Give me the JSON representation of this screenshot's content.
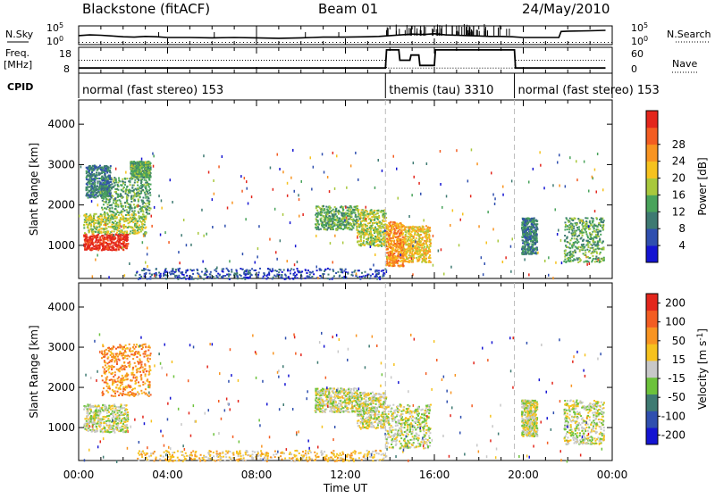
{
  "header": {
    "title": "Blackstone (fitACF)",
    "beam": "Beam 01",
    "date": "24/May/2010"
  },
  "chart_data": [
    {
      "id": "noise-panel",
      "type": "line",
      "left_label": "N.Sky",
      "right_label": "N.Search",
      "left_ticks": [
        "10^5",
        "10^0"
      ],
      "right_ticks": [
        "10^5",
        "10^0"
      ],
      "ylim": [
        0,
        5
      ],
      "series": [
        {
          "name": "N.Sky",
          "x": [
            0,
            0.5,
            1,
            1.5,
            2,
            2.5,
            3,
            3.5,
            4,
            5,
            6,
            7,
            8,
            9,
            10,
            10.5,
            11,
            12,
            13,
            13.5,
            14,
            14.5,
            15,
            15.5,
            16,
            16.5,
            17,
            17.5,
            18,
            18.5,
            19,
            19.5,
            20,
            20.5,
            21.6,
            21.7,
            22,
            23,
            23.7
          ],
          "y": [
            2.4,
            2.6,
            2.5,
            2.3,
            2.1,
            2.0,
            2.2,
            2.1,
            1.9,
            1.9,
            1.8,
            1.9,
            1.8,
            1.7,
            1.8,
            1.9,
            2.0,
            2.0,
            2.1,
            2.2,
            2.4,
            2.6,
            2.8,
            2.7,
            2.9,
            2.6,
            2.5,
            2.4,
            2.3,
            2.2,
            2.2,
            2.1,
            1.9,
            1.9,
            1.9,
            3.5,
            3.6,
            3.7,
            3.8
          ]
        }
      ]
    },
    {
      "id": "frequency-panel",
      "type": "line",
      "left_label": "Freq. [MHz]",
      "right_label": "Nave",
      "left_ticks": [
        "18",
        "8"
      ],
      "right_ticks": [
        "60",
        "0"
      ],
      "ylim": [
        8,
        18
      ],
      "series": [
        {
          "name": "Freq.",
          "x": [
            0,
            13.8,
            13.85,
            14.4,
            14.45,
            14.9,
            14.95,
            15.3,
            15.35,
            16.0,
            16.05,
            19.6,
            19.65,
            20.4,
            22.0,
            22.05,
            23.7
          ],
          "y": [
            10,
            10,
            17,
            17,
            13,
            13,
            15,
            15,
            11,
            11,
            17,
            17,
            10,
            10,
            10,
            10,
            10
          ]
        },
        {
          "name": "Nave",
          "x": [
            0,
            13.8,
            13.85,
            19.6,
            19.65,
            20.4,
            22.0,
            23.7
          ],
          "y": [
            13,
            13,
            10,
            10,
            13,
            13,
            13,
            13
          ]
        }
      ]
    },
    {
      "id": "cpid-strip",
      "type": "table",
      "label": "CPID",
      "segments": [
        {
          "text": "normal (fast stereo) 153",
          "start": 0,
          "end": 13.8
        },
        {
          "text": "themis (tau) 3310",
          "start": 13.8,
          "end": 19.6
        },
        {
          "text": "normal (fast stereo) 153",
          "start": 19.6,
          "end": 24
        }
      ]
    },
    {
      "id": "power-panel",
      "type": "heatmap",
      "ylabel": "Slant Range [km]",
      "xlim": [
        0,
        24
      ],
      "ylim": [
        180,
        4600
      ],
      "y_ticks": [
        1000,
        2000,
        3000,
        4000
      ],
      "colorbar": {
        "label": "Power [dB]",
        "range": [
          0,
          32
        ],
        "ticks": [
          "4",
          "8",
          "12",
          "16",
          "20",
          "24",
          "28"
        ],
        "colors": [
          "#1414d2",
          "#2f4faf",
          "#3e7a72",
          "#49a35b",
          "#a8c83c",
          "#f6c21e",
          "#f89421",
          "#f35d22",
          "#e3261c"
        ]
      },
      "echo_regions": [
        {
          "t0": 0.2,
          "t1": 2.2,
          "r0": 900,
          "r1": 1300,
          "level": 8
        },
        {
          "t0": 0.2,
          "t1": 3.0,
          "r0": 1300,
          "r1": 1800,
          "level": 4
        },
        {
          "t0": 1.0,
          "t1": 3.2,
          "r0": 1800,
          "r1": 2700,
          "level": 3
        },
        {
          "t0": 2.3,
          "t1": 3.2,
          "r0": 2700,
          "r1": 3100,
          "level": 3
        },
        {
          "t0": 0.3,
          "t1": 1.4,
          "r0": 2200,
          "r1": 3000,
          "level": 2
        },
        {
          "t0": 10.6,
          "t1": 12.5,
          "r0": 1400,
          "r1": 2000,
          "level": 3
        },
        {
          "t0": 12.5,
          "t1": 13.8,
          "r0": 1000,
          "r1": 1900,
          "level": 4
        },
        {
          "t0": 13.8,
          "t1": 14.6,
          "r0": 500,
          "r1": 1600,
          "level": 6
        },
        {
          "t0": 14.6,
          "t1": 15.8,
          "r0": 600,
          "r1": 1500,
          "level": 5
        },
        {
          "t0": 19.9,
          "t1": 20.6,
          "r0": 800,
          "r1": 1700,
          "level": 2
        },
        {
          "t0": 21.8,
          "t1": 23.6,
          "r0": 600,
          "r1": 1700,
          "level": 3
        },
        {
          "t0": 2.5,
          "t1": 13.8,
          "r0": 180,
          "r1": 450,
          "level": 1
        }
      ]
    },
    {
      "id": "velocity-panel",
      "type": "heatmap",
      "xlabel": "Time UT",
      "ylabel": "Slant Range [km]",
      "xlim": [
        0,
        24
      ],
      "ylim": [
        180,
        4600
      ],
      "y_ticks": [
        1000,
        2000,
        3000,
        4000
      ],
      "x_ticks": [
        "00:00",
        "04:00",
        "08:00",
        "12:00",
        "16:00",
        "20:00",
        "00:00"
      ],
      "colorbar": {
        "label": "Velocity [m s^-1]",
        "range": [
          -250,
          250
        ],
        "ticks": [
          "200",
          "100",
          "50",
          "15",
          "-15",
          "-50",
          "-100",
          "-200"
        ],
        "colors": [
          "#1414d2",
          "#2f4faf",
          "#3e7a72",
          "#6cc23b",
          "#c8c8c8",
          "#f6c21e",
          "#f89421",
          "#f35d22",
          "#e3261c"
        ]
      },
      "echo_regions": [
        {
          "t0": 0.2,
          "t1": 2.2,
          "r0": 900,
          "r1": 1600,
          "level": 4
        },
        {
          "t0": 1.0,
          "t1": 3.2,
          "r0": 1800,
          "r1": 3100,
          "level": 6
        },
        {
          "t0": 10.6,
          "t1": 12.5,
          "r0": 1400,
          "r1": 2000,
          "level": 4
        },
        {
          "t0": 12.5,
          "t1": 13.8,
          "r0": 1000,
          "r1": 1900,
          "level": 4
        },
        {
          "t0": 13.8,
          "t1": 15.8,
          "r0": 500,
          "r1": 1600,
          "level": 4
        },
        {
          "t0": 19.9,
          "t1": 20.6,
          "r0": 800,
          "r1": 1700,
          "level": 4
        },
        {
          "t0": 21.8,
          "t1": 23.6,
          "r0": 600,
          "r1": 1700,
          "level": 4
        },
        {
          "t0": 2.5,
          "t1": 13.8,
          "r0": 180,
          "r1": 450,
          "level": 5
        }
      ]
    }
  ]
}
